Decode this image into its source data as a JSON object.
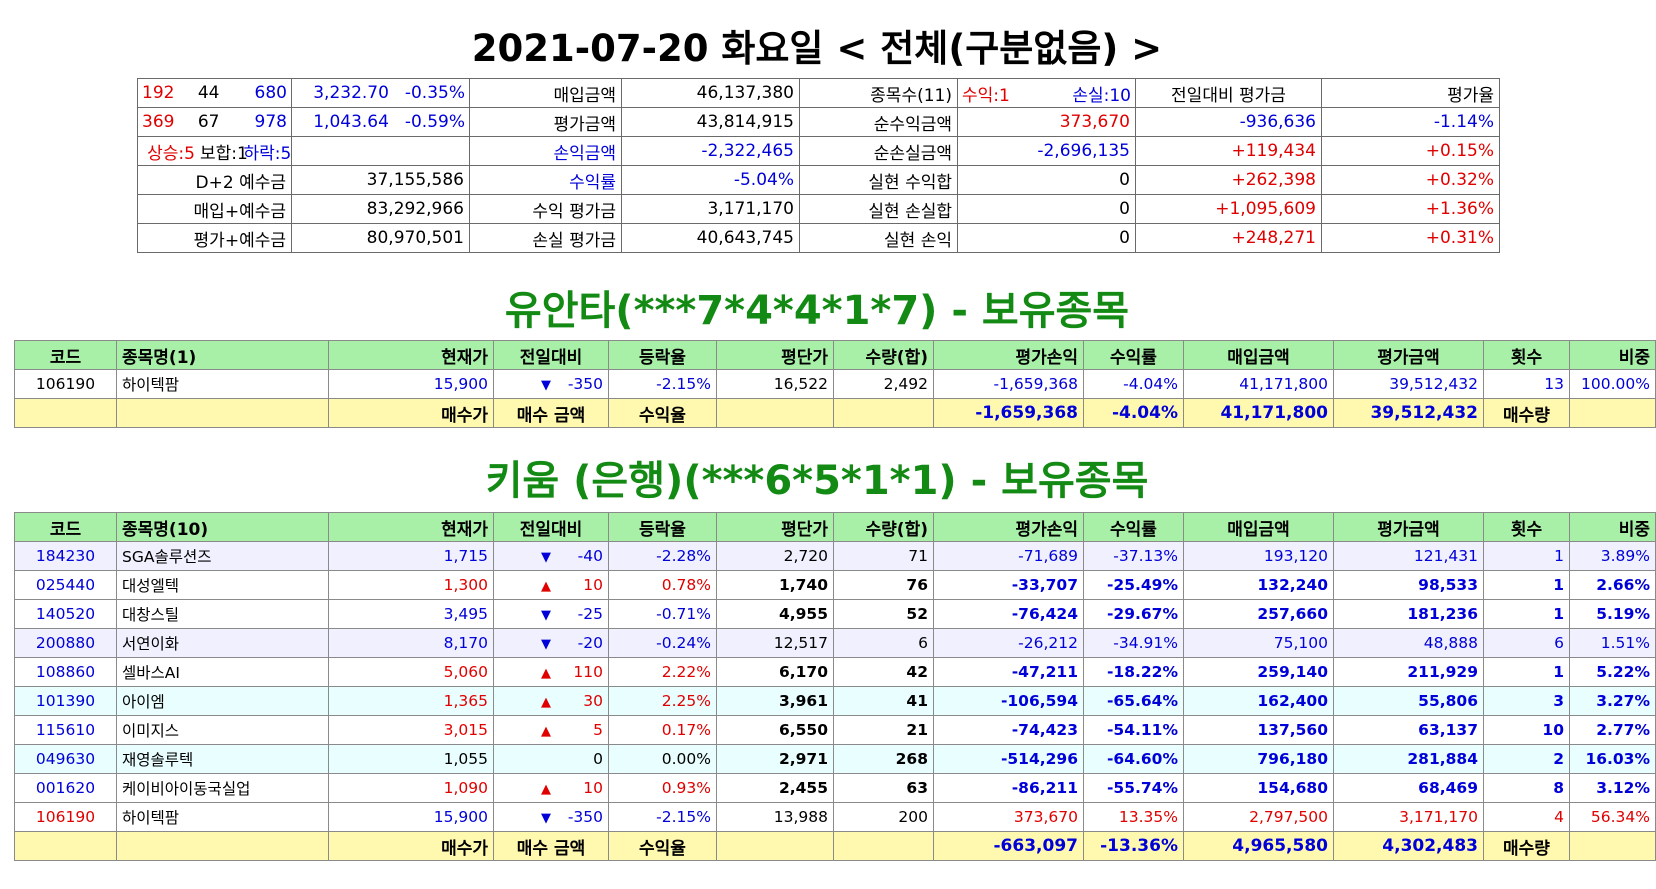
{
  "title": "2021-07-20 화요일 < 전체(구분없음) >",
  "summary": {
    "rows": [
      [
        {
          "parts": [
            {
              "t": "192",
              "cls": "red",
              "w": "28%",
              "a": "l"
            },
            {
              "t": "44",
              "cls": "",
              "w": "36%",
              "a": "c"
            },
            {
              "t": "680",
              "cls": "blue",
              "w": "36%",
              "a": "r"
            }
          ]
        },
        {
          "parts": [
            {
              "t": "3,232.70",
              "cls": "blue",
              "w": "55%",
              "a": "r"
            },
            {
              "t": "-0.35%",
              "cls": "blue",
              "w": "45%",
              "a": "r"
            }
          ]
        },
        {
          "t": "매입금액",
          "cls": "",
          "a": "r"
        },
        {
          "t": "46,137,380",
          "cls": "",
          "a": "r"
        },
        {
          "t": "종목수(11)",
          "cls": "",
          "a": "r"
        },
        {
          "parts": [
            {
              "t": "수익:1",
              "cls": "red",
              "w": "50%",
              "a": "l"
            },
            {
              "t": "손실:10",
              "cls": "blue",
              "w": "50%",
              "a": "r"
            }
          ]
        },
        {
          "t": "전일대비 평가금",
          "cls": "",
          "a": "c"
        },
        {
          "t": "평가율",
          "cls": "",
          "a": "r"
        }
      ],
      [
        {
          "parts": [
            {
              "t": "369",
              "cls": "red",
              "w": "28%",
              "a": "l"
            },
            {
              "t": "67",
              "cls": "",
              "w": "36%",
              "a": "c"
            },
            {
              "t": "978",
              "cls": "blue",
              "w": "36%",
              "a": "r"
            }
          ]
        },
        {
          "parts": [
            {
              "t": "1,043.64",
              "cls": "blue",
              "w": "55%",
              "a": "r"
            },
            {
              "t": "-0.59%",
              "cls": "blue",
              "w": "45%",
              "a": "r"
            }
          ]
        },
        {
          "t": "평가금액",
          "cls": "",
          "a": "r"
        },
        {
          "t": "43,814,915",
          "cls": "",
          "a": "r"
        },
        {
          "t": "순수익금액",
          "cls": "",
          "a": "r"
        },
        {
          "t": "373,670",
          "cls": "red",
          "a": "r"
        },
        {
          "t": "-936,636",
          "cls": "blue",
          "a": "r"
        },
        {
          "t": "-1.14%",
          "cls": "blue",
          "a": "r"
        }
      ],
      [
        {
          "parts": [
            {
              "t": "상승:5",
              "cls": "red",
              "w": "40%",
              "a": "c"
            },
            {
              "t": "보합:1",
              "cls": "",
              "w": "30%",
              "a": "c"
            },
            {
              "t": "하락:5",
              "cls": "blue",
              "w": "30%",
              "a": "r"
            }
          ]
        },
        {
          "t": "",
          "cls": "",
          "a": "r"
        },
        {
          "t": "손익금액",
          "cls": "blue",
          "a": "r"
        },
        {
          "t": "-2,322,465",
          "cls": "blue",
          "a": "r"
        },
        {
          "t": "순손실금액",
          "cls": "",
          "a": "r"
        },
        {
          "t": "-2,696,135",
          "cls": "blue",
          "a": "r"
        },
        {
          "t": "+119,434",
          "cls": "red",
          "a": "r"
        },
        {
          "t": "+0.15%",
          "cls": "red",
          "a": "r"
        }
      ],
      [
        {
          "t": "D+2 예수금",
          "cls": "",
          "a": "r"
        },
        {
          "t": "37,155,586",
          "cls": "",
          "a": "r"
        },
        {
          "t": "수익률",
          "cls": "blue",
          "a": "r"
        },
        {
          "t": "-5.04%",
          "cls": "blue",
          "a": "r"
        },
        {
          "t": "실현 수익합",
          "cls": "",
          "a": "r"
        },
        {
          "t": "0",
          "cls": "",
          "a": "r"
        },
        {
          "t": "+262,398",
          "cls": "red",
          "a": "r"
        },
        {
          "t": "+0.32%",
          "cls": "red",
          "a": "r"
        }
      ],
      [
        {
          "t": "매입+예수금",
          "cls": "",
          "a": "r"
        },
        {
          "t": "83,292,966",
          "cls": "",
          "a": "r"
        },
        {
          "t": "수익 평가금",
          "cls": "",
          "a": "r"
        },
        {
          "t": "3,171,170",
          "cls": "",
          "a": "r"
        },
        {
          "t": "실현 손실합",
          "cls": "",
          "a": "r"
        },
        {
          "t": "0",
          "cls": "",
          "a": "r"
        },
        {
          "t": "+1,095,609",
          "cls": "red",
          "a": "r"
        },
        {
          "t": "+1.36%",
          "cls": "red",
          "a": "r"
        }
      ],
      [
        {
          "t": "평가+예수금",
          "cls": "",
          "a": "r"
        },
        {
          "t": "80,970,501",
          "cls": "",
          "a": "r"
        },
        {
          "t": "손실 평가금",
          "cls": "",
          "a": "r"
        },
        {
          "t": "40,643,745",
          "cls": "",
          "a": "r"
        },
        {
          "t": "실현 손익",
          "cls": "",
          "a": "r"
        },
        {
          "t": "0",
          "cls": "",
          "a": "r"
        },
        {
          "t": "+248,271",
          "cls": "red",
          "a": "r"
        },
        {
          "t": "+0.31%",
          "cls": "red",
          "a": "r"
        }
      ]
    ]
  },
  "section1": {
    "title": "유안타(***7*4*4*1*7) - 보유종목",
    "headers": [
      "코드",
      "종목명(1)",
      "현재가",
      "전일대비",
      "등락율",
      "평단가",
      "수량(합)",
      "평가손익",
      "수익률",
      "매입금액",
      "평가금액",
      "횟수",
      "비중"
    ],
    "rows": [
      {
        "style": "r1",
        "bold": false,
        "code": "106190",
        "name": "하이텍팜",
        "price": "15,900",
        "dir": "down",
        "change": "-350",
        "rate": "-2.15%",
        "avg": "16,522",
        "qty": "2,492",
        "pl": "-1,659,368",
        "ret": "-4.04%",
        "buy": "41,171,800",
        "eval": "39,512,432",
        "count": "13",
        "weight": "100.00%",
        "code_cls": "green",
        "price_cls": "blue",
        "rate_cls": "blue",
        "pl_cls": "blue",
        "ret_cls": "blue",
        "buy_cls": "blue",
        "eval_cls": "blue",
        "count_cls": "blue",
        "weight_cls": "blue"
      }
    ],
    "footer": {
      "buy_price": "매수가",
      "buy_amount": "매수 금액",
      "yield": "수익율",
      "pl": "-1,659,368",
      "ret": "-4.04%",
      "buy": "41,171,800",
      "eval": "39,512,432",
      "qty_label": "매수량"
    }
  },
  "section2": {
    "title": "키움 (은행)(***6*5*1*1) - 보유종목",
    "headers": [
      "코드",
      "종목명(10)",
      "현재가",
      "전일대비",
      "등락율",
      "평단가",
      "수량(합)",
      "평가손익",
      "수익률",
      "매입금액",
      "평가금액",
      "횟수",
      "비중"
    ],
    "rows": [
      {
        "style": "r0",
        "bold": false,
        "code": "184230",
        "name": "SGA솔루션즈",
        "price": "1,715",
        "dir": "down",
        "change": "-40",
        "rate": "-2.28%",
        "avg": "2,720",
        "qty": "71",
        "pl": "-71,689",
        "ret": "-37.13%",
        "buy": "193,120",
        "eval": "121,431",
        "count": "1",
        "weight": "3.89%",
        "code_cls": "blue",
        "price_cls": "blue",
        "rate_cls": "blue",
        "pl_cls": "blue",
        "ret_cls": "blue",
        "buy_cls": "blue",
        "eval_cls": "blue",
        "count_cls": "blue",
        "weight_cls": "blue"
      },
      {
        "style": "r1",
        "bold": true,
        "code": "025440",
        "name": "대성엘텍",
        "price": "1,300",
        "dir": "up",
        "change": "10",
        "rate": "0.78%",
        "avg": "1,740",
        "qty": "76",
        "pl": "-33,707",
        "ret": "-25.49%",
        "buy": "132,240",
        "eval": "98,533",
        "count": "1",
        "weight": "2.66%",
        "code_cls": "blue",
        "price_cls": "red",
        "rate_cls": "red",
        "pl_cls": "blue",
        "ret_cls": "blue",
        "buy_cls": "blue",
        "eval_cls": "blue",
        "count_cls": "blue",
        "weight_cls": "blue"
      },
      {
        "style": "r1",
        "bold": true,
        "code": "140520",
        "name": "대창스틸",
        "price": "3,495",
        "dir": "down",
        "change": "-25",
        "rate": "-0.71%",
        "avg": "4,955",
        "qty": "52",
        "pl": "-76,424",
        "ret": "-29.67%",
        "buy": "257,660",
        "eval": "181,236",
        "count": "1",
        "weight": "5.19%",
        "code_cls": "blue",
        "price_cls": "blue",
        "rate_cls": "blue",
        "pl_cls": "blue",
        "ret_cls": "blue",
        "buy_cls": "blue",
        "eval_cls": "blue",
        "count_cls": "blue",
        "weight_cls": "blue"
      },
      {
        "style": "r0",
        "bold": false,
        "code": "200880",
        "name": "서연이화",
        "price": "8,170",
        "dir": "down",
        "change": "-20",
        "rate": "-0.24%",
        "avg": "12,517",
        "qty": "6",
        "pl": "-26,212",
        "ret": "-34.91%",
        "buy": "75,100",
        "eval": "48,888",
        "count": "6",
        "weight": "1.51%",
        "code_cls": "blue",
        "price_cls": "blue",
        "rate_cls": "blue",
        "pl_cls": "blue",
        "ret_cls": "blue",
        "buy_cls": "blue",
        "eval_cls": "blue",
        "count_cls": "blue",
        "weight_cls": "blue"
      },
      {
        "style": "r1",
        "bold": true,
        "code": "108860",
        "name": "셀바스AI",
        "price": "5,060",
        "dir": "up",
        "change": "110",
        "rate": "2.22%",
        "avg": "6,170",
        "qty": "42",
        "pl": "-47,211",
        "ret": "-18.22%",
        "buy": "259,140",
        "eval": "211,929",
        "count": "1",
        "weight": "5.22%",
        "code_cls": "blue",
        "price_cls": "red",
        "rate_cls": "red",
        "pl_cls": "blue",
        "ret_cls": "blue",
        "buy_cls": "blue",
        "eval_cls": "blue",
        "count_cls": "blue",
        "weight_cls": "blue"
      },
      {
        "style": "r2",
        "bold": true,
        "code": "101390",
        "name": "아이엠",
        "price": "1,365",
        "dir": "up",
        "change": "30",
        "rate": "2.25%",
        "avg": "3,961",
        "qty": "41",
        "pl": "-106,594",
        "ret": "-65.64%",
        "buy": "162,400",
        "eval": "55,806",
        "count": "3",
        "weight": "3.27%",
        "code_cls": "blue",
        "price_cls": "red",
        "rate_cls": "red",
        "pl_cls": "blue",
        "ret_cls": "blue",
        "buy_cls": "blue",
        "eval_cls": "blue",
        "count_cls": "blue",
        "weight_cls": "blue"
      },
      {
        "style": "r1",
        "bold": true,
        "code": "115610",
        "name": "이미지스",
        "price": "3,015",
        "dir": "up",
        "change": "5",
        "rate": "0.17%",
        "avg": "6,550",
        "qty": "21",
        "pl": "-74,423",
        "ret": "-54.11%",
        "buy": "137,560",
        "eval": "63,137",
        "count": "10",
        "weight": "2.77%",
        "code_cls": "blue",
        "price_cls": "red",
        "rate_cls": "red",
        "pl_cls": "blue",
        "ret_cls": "blue",
        "buy_cls": "blue",
        "eval_cls": "blue",
        "count_cls": "blue",
        "weight_cls": "blue"
      },
      {
        "style": "r2",
        "bold": true,
        "code": "049630",
        "name": "재영솔루텍",
        "price": "1,055",
        "dir": "none",
        "change": "0",
        "rate": "0.00%",
        "avg": "2,971",
        "qty": "268",
        "pl": "-514,296",
        "ret": "-64.60%",
        "buy": "796,180",
        "eval": "281,884",
        "count": "2",
        "weight": "16.03%",
        "code_cls": "blue",
        "price_cls": "",
        "rate_cls": "",
        "pl_cls": "blue",
        "ret_cls": "blue",
        "buy_cls": "blue",
        "eval_cls": "blue",
        "count_cls": "blue",
        "weight_cls": "blue"
      },
      {
        "style": "r1",
        "bold": true,
        "code": "001620",
        "name": "케이비아이동국실업",
        "price": "1,090",
        "dir": "up",
        "change": "10",
        "rate": "0.93%",
        "avg": "2,455",
        "qty": "63",
        "pl": "-86,211",
        "ret": "-55.74%",
        "buy": "154,680",
        "eval": "68,469",
        "count": "8",
        "weight": "3.12%",
        "code_cls": "blue",
        "price_cls": "red",
        "rate_cls": "red",
        "pl_cls": "blue",
        "ret_cls": "blue",
        "buy_cls": "blue",
        "eval_cls": "blue",
        "count_cls": "blue",
        "weight_cls": "blue"
      },
      {
        "style": "r1",
        "bold": false,
        "code": "106190",
        "name": "하이텍팜",
        "price": "15,900",
        "dir": "down",
        "change": "-350",
        "rate": "-2.15%",
        "avg": "13,988",
        "qty": "200",
        "pl": "373,670",
        "ret": "13.35%",
        "buy": "2,797,500",
        "eval": "3,171,170",
        "count": "4",
        "weight": "56.34%",
        "code_cls": "red",
        "price_cls": "blue",
        "rate_cls": "blue",
        "pl_cls": "red",
        "ret_cls": "red",
        "buy_cls": "red",
        "eval_cls": "red",
        "count_cls": "red",
        "weight_cls": "red"
      }
    ],
    "footer": {
      "buy_price": "매수가",
      "buy_amount": "매수 금액",
      "yield": "수익율",
      "pl": "-663,097",
      "ret": "-13.36%",
      "buy": "4,965,580",
      "eval": "4,302,483",
      "qty_label": "매수량"
    }
  },
  "colors": {
    "up": "#e00000",
    "down": "#0000d8",
    "section_title": "#138a13",
    "header_bg": "#a8f0a8",
    "footer_bg": "#fff9b0"
  },
  "icons": {
    "up": "triangle-up-icon",
    "down": "triangle-down-icon"
  }
}
